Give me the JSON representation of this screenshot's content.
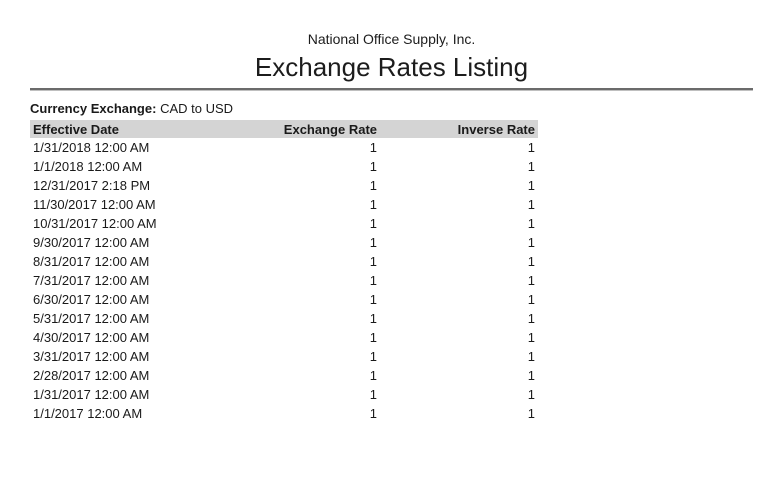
{
  "report": {
    "company_name": "National Office Supply, Inc.",
    "title": "Exchange Rates Listing",
    "filter": {
      "label": "Currency Exchange:",
      "value": "CAD to USD"
    }
  },
  "table": {
    "columns": [
      {
        "label": "Effective Date",
        "align": "left"
      },
      {
        "label": "Exchange Rate",
        "align": "right"
      },
      {
        "label": "Inverse Rate",
        "align": "right"
      }
    ],
    "rows": [
      {
        "effective_date": "1/31/2018 12:00 AM",
        "exchange_rate": "1",
        "inverse_rate": "1"
      },
      {
        "effective_date": "1/1/2018 12:00 AM",
        "exchange_rate": "1",
        "inverse_rate": "1"
      },
      {
        "effective_date": "12/31/2017 2:18 PM",
        "exchange_rate": "1",
        "inverse_rate": "1"
      },
      {
        "effective_date": "11/30/2017 12:00 AM",
        "exchange_rate": "1",
        "inverse_rate": "1"
      },
      {
        "effective_date": "10/31/2017 12:00 AM",
        "exchange_rate": "1",
        "inverse_rate": "1"
      },
      {
        "effective_date": "9/30/2017 12:00 AM",
        "exchange_rate": "1",
        "inverse_rate": "1"
      },
      {
        "effective_date": "8/31/2017 12:00 AM",
        "exchange_rate": "1",
        "inverse_rate": "1"
      },
      {
        "effective_date": "7/31/2017 12:00 AM",
        "exchange_rate": "1",
        "inverse_rate": "1"
      },
      {
        "effective_date": "6/30/2017 12:00 AM",
        "exchange_rate": "1",
        "inverse_rate": "1"
      },
      {
        "effective_date": "5/31/2017 12:00 AM",
        "exchange_rate": "1",
        "inverse_rate": "1"
      },
      {
        "effective_date": "4/30/2017 12:00 AM",
        "exchange_rate": "1",
        "inverse_rate": "1"
      },
      {
        "effective_date": "3/31/2017 12:00 AM",
        "exchange_rate": "1",
        "inverse_rate": "1"
      },
      {
        "effective_date": "2/28/2017 12:00 AM",
        "exchange_rate": "1",
        "inverse_rate": "1"
      },
      {
        "effective_date": "1/31/2017 12:00 AM",
        "exchange_rate": "1",
        "inverse_rate": "1"
      },
      {
        "effective_date": "1/1/2017 12:00 AM",
        "exchange_rate": "1",
        "inverse_rate": "1"
      }
    ]
  },
  "colors": {
    "header_row_bg": "#d4d4d4",
    "separator_dark": "#6b6b6b",
    "separator_light": "#bfbfbf",
    "text": "#1a1a1a"
  }
}
